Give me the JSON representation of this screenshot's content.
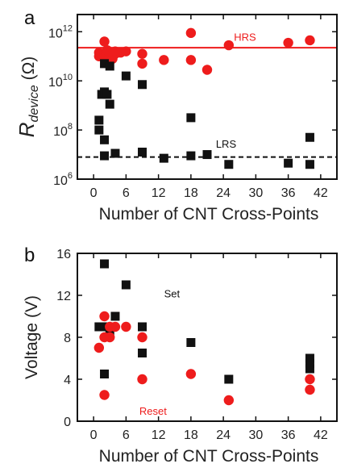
{
  "chart_data": [
    {
      "panel": "a",
      "type": "scatter",
      "xlabel": "Number of CNT Cross-Points",
      "ylabel_main": "R",
      "ylabel_sub": "device",
      "ylabel_unit": "(Ω)",
      "yscale": "log",
      "xlim": [
        -3,
        45
      ],
      "ylim_exp": [
        6,
        12.7
      ],
      "xticks": [
        "0",
        "6",
        "12",
        "18",
        "24",
        "30",
        "36",
        "42"
      ],
      "xtick_values": [
        0,
        6,
        12,
        18,
        24,
        30,
        36,
        42
      ],
      "yticks": [
        {
          "exp": 6,
          "base": "10",
          "sup": "6"
        },
        {
          "exp": 8,
          "base": "10",
          "sup": "8"
        },
        {
          "exp": 10,
          "base": "10",
          "sup": "10"
        },
        {
          "exp": 12,
          "base": "10",
          "sup": "12"
        }
      ],
      "annotations": [
        {
          "text": "HRS",
          "x": 28,
          "exp": 11.8,
          "color": "#ee1c1c"
        },
        {
          "text": "LRS",
          "x": 24.5,
          "exp": 7.45,
          "color": "#111111"
        }
      ],
      "reference_lines": [
        {
          "exp": 11.35,
          "color": "#ee1c1c",
          "style": "solid"
        },
        {
          "exp": 6.9,
          "color": "#111111",
          "style": "dashed"
        }
      ],
      "series": [
        {
          "marker": "circle",
          "color": "#ee1c1c",
          "points": [
            [
              1,
              11.0
            ],
            [
              1,
              11.15
            ],
            [
              1.5,
              11.1
            ],
            [
              2,
              11.05
            ],
            [
              2,
              11.6
            ],
            [
              2,
              10.95
            ],
            [
              2.5,
              11.25
            ],
            [
              3,
              11.0
            ],
            [
              3,
              11.1
            ],
            [
              3.5,
              10.9
            ],
            [
              4,
              11.1
            ],
            [
              4,
              11.2
            ],
            [
              5,
              11.15
            ],
            [
              6,
              11.2
            ],
            [
              9,
              11.1
            ],
            [
              9,
              10.7
            ],
            [
              13,
              10.85
            ],
            [
              18,
              11.95
            ],
            [
              18,
              10.85
            ],
            [
              21,
              10.45
            ],
            [
              25,
              11.45
            ],
            [
              36,
              11.55
            ],
            [
              40,
              11.65
            ]
          ]
        },
        {
          "marker": "square",
          "color": "#111111",
          "points": [
            [
              1,
              8.4
            ],
            [
              1,
              8.0
            ],
            [
              1.5,
              9.45
            ],
            [
              2,
              9.55
            ],
            [
              2,
              7.6
            ],
            [
              2,
              6.95
            ],
            [
              2,
              10.7
            ],
            [
              2.5,
              9.45
            ],
            [
              3,
              10.6
            ],
            [
              3,
              9.05
            ],
            [
              4,
              7.05
            ],
            [
              6,
              10.2
            ],
            [
              9,
              7.1
            ],
            [
              9,
              9.85
            ],
            [
              13,
              6.85
            ],
            [
              18,
              6.95
            ],
            [
              18,
              8.5
            ],
            [
              21,
              7.0
            ],
            [
              25,
              6.6
            ],
            [
              36,
              6.65
            ],
            [
              40,
              6.6
            ],
            [
              40,
              7.7
            ]
          ]
        }
      ]
    },
    {
      "panel": "b",
      "type": "scatter",
      "xlabel": "Number of CNT Cross-Points",
      "ylabel": "Voltage (V)",
      "xlim": [
        -3,
        45
      ],
      "ylim": [
        0,
        16
      ],
      "xticks": [
        "0",
        "6",
        "12",
        "18",
        "24",
        "30",
        "36",
        "42"
      ],
      "xtick_values": [
        0,
        6,
        12,
        18,
        24,
        30,
        36,
        42
      ],
      "yticks": [
        "0",
        "4",
        "8",
        "12",
        "16"
      ],
      "ytick_values": [
        0,
        4,
        8,
        12,
        16
      ],
      "annotations": [
        {
          "text": "Set",
          "x": 14.5,
          "y": 12.2,
          "color": "#111111"
        },
        {
          "text": "Reset",
          "x": 11,
          "y": 1.0,
          "color": "#ee1c1c"
        }
      ],
      "series": [
        {
          "name": "Set",
          "marker": "square",
          "color": "#111111",
          "points": [
            [
              1,
              9
            ],
            [
              2,
              15
            ],
            [
              2,
              9
            ],
            [
              2,
              4.5
            ],
            [
              3,
              9
            ],
            [
              3,
              8.5
            ],
            [
              4,
              10
            ],
            [
              6,
              13
            ],
            [
              9,
              9
            ],
            [
              9,
              6.5
            ],
            [
              18,
              7.5
            ],
            [
              25,
              4
            ],
            [
              40,
              6
            ],
            [
              40,
              5.5
            ],
            [
              40,
              5
            ]
          ]
        },
        {
          "name": "Reset",
          "marker": "circle",
          "color": "#ee1c1c",
          "points": [
            [
              1,
              7
            ],
            [
              2,
              10
            ],
            [
              2,
              8
            ],
            [
              2,
              2.5
            ],
            [
              3,
              9
            ],
            [
              3,
              8
            ],
            [
              4,
              9
            ],
            [
              6,
              9
            ],
            [
              9,
              8
            ],
            [
              9,
              4
            ],
            [
              18,
              4.5
            ],
            [
              25,
              2
            ],
            [
              40,
              4
            ],
            [
              40,
              3
            ]
          ]
        }
      ]
    }
  ]
}
